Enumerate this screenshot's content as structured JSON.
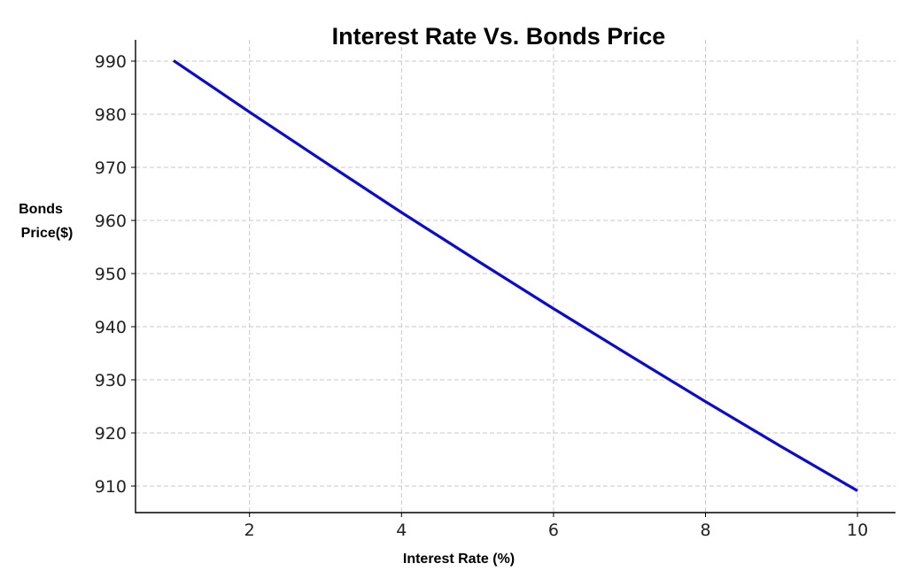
{
  "chart_data": {
    "type": "line",
    "title": "Interest Rate Vs. Bonds Price",
    "xlabel": "Interest Rate (%)",
    "ylabel_lines": [
      "Bonds",
      "Price($)"
    ],
    "xlim": [
      0.5,
      10.5
    ],
    "ylim": [
      905,
      994
    ],
    "xticks": [
      2,
      4,
      6,
      8,
      10
    ],
    "yticks": [
      910,
      920,
      930,
      940,
      950,
      960,
      970,
      980,
      990
    ],
    "grid": true,
    "series": [
      {
        "color": "#0b0bce",
        "x": [
          1,
          2,
          3,
          4,
          5,
          6,
          7,
          8,
          9,
          10
        ],
        "y": [
          990.1,
          980.4,
          970.9,
          961.5,
          952.4,
          943.4,
          934.6,
          925.9,
          917.4,
          909.1
        ]
      }
    ]
  }
}
